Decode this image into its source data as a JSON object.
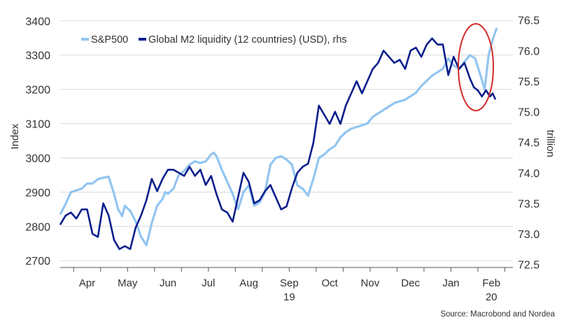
{
  "source": "Source: Macrobond and Nordea",
  "colors": {
    "sp500": "#92c5f0",
    "m2": "#0a1e8c",
    "grid": "#d9d9d9",
    "axis": "#555555",
    "highlight": "#d22b2b"
  },
  "chart_data": {
    "type": "line",
    "ylabel_left": "Index",
    "ylabel_right": "trillion",
    "ylim_left": [
      2680,
      3420
    ],
    "ylim_right": [
      72.45,
      76.6
    ],
    "yticks_left": [
      "2700",
      "2800",
      "2900",
      "3000",
      "3100",
      "3200",
      "3300",
      "3400"
    ],
    "yticks_right": [
      "72.5",
      "73.0",
      "73.5",
      "74.0",
      "74.5",
      "75.0",
      "75.5",
      "76.0",
      "76.5"
    ],
    "xticks": [
      "Apr",
      "May",
      "Jun",
      "Jul",
      "Aug",
      "Sep",
      "Oct",
      "Nov",
      "Dec",
      "Jan",
      "Feb"
    ],
    "year_labels": [
      "19",
      "20"
    ],
    "grid": true,
    "legend_position": "top-left",
    "x_unit": "months since 2019-03-15",
    "series": [
      {
        "name": "S&P500",
        "axis": "left",
        "x": [
          0,
          0.2,
          0.4,
          0.6,
          0.8,
          1.0,
          1.2,
          1.4,
          1.6,
          1.8,
          2.0,
          2.15,
          2.3,
          2.4,
          2.6,
          2.8,
          3.0,
          3.2,
          3.4,
          3.6,
          3.8,
          3.9,
          4.0,
          4.2,
          4.4,
          4.6,
          4.8,
          5.0,
          5.2,
          5.4,
          5.6,
          5.7,
          5.8,
          6.0,
          6.2,
          6.4,
          6.6,
          6.8,
          7.0,
          7.2,
          7.4,
          7.6,
          7.8,
          8.0,
          8.2,
          8.4,
          8.6,
          8.8,
          9.0,
          9.2,
          9.4,
          9.6,
          9.8,
          10.0,
          10.2,
          10.4,
          10.6,
          10.8,
          11.0,
          11.2,
          11.4,
          11.6,
          11.8,
          12.0,
          12.2,
          12.4,
          12.6,
          12.8,
          13.0,
          13.2,
          13.4,
          13.6,
          13.8,
          14.0,
          14.2,
          14.4,
          14.6,
          14.8,
          15.0,
          15.2,
          15.4,
          15.6,
          15.75,
          15.9,
          16.05,
          16.2
        ],
        "values": [
          2835,
          2865,
          2900,
          2905,
          2910,
          2925,
          2925,
          2938,
          2942,
          2945,
          2895,
          2850,
          2830,
          2860,
          2845,
          2815,
          2770,
          2745,
          2810,
          2860,
          2880,
          2900,
          2895,
          2910,
          2950,
          2962,
          2980,
          2990,
          2985,
          2990,
          3010,
          3015,
          3005,
          2965,
          2930,
          2895,
          2850,
          2900,
          2920,
          2860,
          2870,
          2900,
          2980,
          3000,
          3005,
          2995,
          2980,
          2920,
          2910,
          2890,
          2940,
          3000,
          3010,
          3025,
          3035,
          3060,
          3075,
          3085,
          3090,
          3095,
          3100,
          3120,
          3130,
          3140,
          3150,
          3160,
          3165,
          3170,
          3180,
          3190,
          3210,
          3225,
          3240,
          3250,
          3260,
          3290,
          3270,
          3260,
          3280,
          3300,
          3290,
          3240,
          3200,
          3300,
          3345,
          3380
        ]
      },
      {
        "name": "Global M2 liquidity (12 countries) (USD), rhs",
        "axis": "right",
        "x": [
          0,
          0.2,
          0.4,
          0.6,
          0.8,
          1.0,
          1.2,
          1.4,
          1.6,
          1.8,
          2.0,
          2.2,
          2.4,
          2.6,
          2.8,
          3.0,
          3.2,
          3.4,
          3.5,
          3.6,
          3.8,
          4.0,
          4.2,
          4.4,
          4.6,
          4.8,
          5.0,
          5.2,
          5.4,
          5.6,
          5.8,
          6.0,
          6.2,
          6.4,
          6.6,
          6.8,
          7.0,
          7.2,
          7.4,
          7.6,
          7.8,
          8.0,
          8.2,
          8.4,
          8.6,
          8.8,
          9.0,
          9.2,
          9.4,
          9.6,
          9.8,
          10.0,
          10.2,
          10.4,
          10.6,
          10.8,
          11.0,
          11.2,
          11.4,
          11.6,
          11.8,
          12.0,
          12.2,
          12.4,
          12.6,
          12.8,
          13.0,
          13.2,
          13.4,
          13.6,
          13.8,
          14.0,
          14.2,
          14.4,
          14.6,
          14.8,
          15.0,
          15.2,
          15.35,
          15.5,
          15.65,
          15.8,
          15.95,
          16.05,
          16.15
        ],
        "values": [
          73.15,
          73.3,
          73.35,
          73.25,
          73.4,
          73.4,
          73.0,
          72.95,
          73.5,
          73.3,
          72.9,
          72.75,
          72.8,
          72.75,
          73.1,
          73.3,
          73.55,
          73.9,
          73.8,
          73.7,
          73.9,
          74.05,
          74.05,
          74.0,
          73.95,
          74.1,
          73.95,
          74.05,
          73.8,
          73.95,
          73.65,
          73.4,
          73.35,
          73.2,
          73.6,
          74.0,
          73.85,
          73.5,
          73.55,
          73.7,
          73.8,
          73.6,
          73.4,
          73.45,
          73.75,
          74.0,
          74.1,
          74.15,
          74.5,
          75.1,
          74.95,
          74.8,
          75.0,
          74.8,
          75.1,
          75.3,
          75.5,
          75.3,
          75.5,
          75.7,
          75.8,
          76.0,
          75.9,
          75.8,
          75.85,
          75.7,
          76.0,
          76.05,
          75.9,
          76.1,
          76.2,
          76.1,
          76.1,
          75.6,
          75.9,
          75.7,
          75.8,
          75.55,
          75.4,
          75.35,
          75.25,
          75.35,
          75.25,
          75.3,
          75.2
        ]
      }
    ]
  }
}
